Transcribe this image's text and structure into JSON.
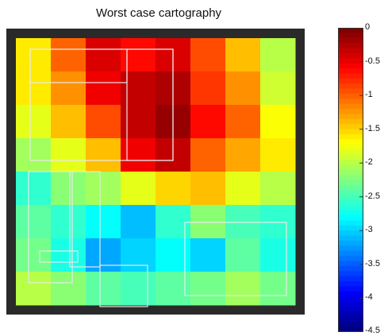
{
  "title": "Worst case cartography",
  "chart_data": {
    "type": "heatmap",
    "title": "Worst case cartography",
    "xlabel": "",
    "ylabel": "",
    "colorbar": {
      "range": [
        -4.5,
        0
      ],
      "colormap": "jet",
      "ticks": [
        0,
        -0.5,
        -1,
        -1.5,
        -2,
        -2.5,
        -3,
        -3.5,
        -4,
        -4.5
      ],
      "tick_labels": [
        "0",
        "-0.5",
        "-1",
        "-1.5",
        "-2",
        "-2.5",
        "-3",
        "-3.5",
        "-4",
        "-4.5"
      ]
    },
    "grid_rows": 8,
    "grid_cols": 8,
    "values": [
      [
        -1.6,
        -1.0,
        -0.4,
        -0.6,
        -0.4,
        -0.9,
        -1.4,
        -2.0
      ],
      [
        -1.6,
        -1.2,
        -0.5,
        -0.3,
        -0.2,
        -0.8,
        -1.2,
        -1.9
      ],
      [
        -1.8,
        -1.4,
        -0.9,
        -0.3,
        -0.1,
        -0.6,
        -1.0,
        -1.7
      ],
      [
        -2.1,
        -1.8,
        -1.4,
        -0.5,
        -0.3,
        -1.0,
        -1.3,
        -1.6
      ],
      [
        -2.6,
        -2.2,
        -2.1,
        -1.8,
        -1.5,
        -1.4,
        -1.8,
        -2.0
      ],
      [
        -2.4,
        -2.6,
        -2.8,
        -3.1,
        -2.6,
        -2.2,
        -2.5,
        -2.6
      ],
      [
        -2.3,
        -2.7,
        -3.2,
        -3.0,
        -2.8,
        -3.0,
        -2.4,
        -2.7
      ],
      [
        -2.0,
        -2.2,
        -2.4,
        -2.5,
        -2.4,
        -2.3,
        -2.1,
        -2.3
      ]
    ]
  }
}
